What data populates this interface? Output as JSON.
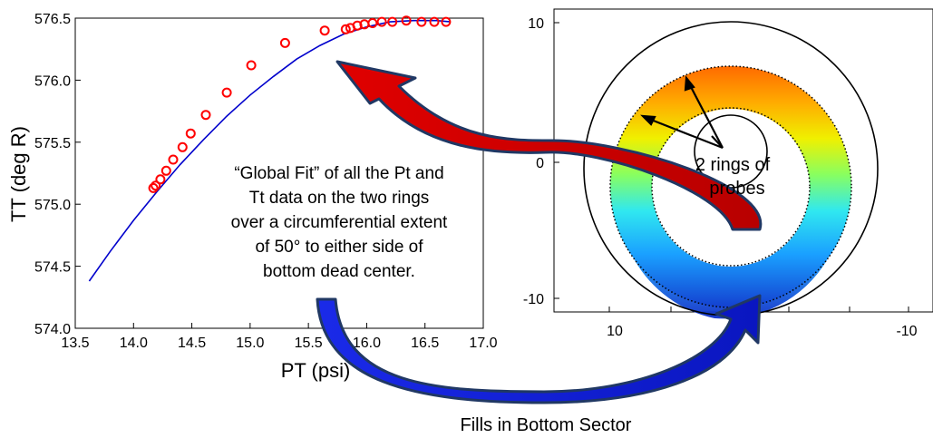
{
  "chart_data": [
    {
      "type": "scatter",
      "title": "",
      "xlabel": "PT (psi)",
      "ylabel": "TT (deg R)",
      "xlim": [
        13.5,
        17.0
      ],
      "ylim": [
        574.0,
        576.5
      ],
      "x_ticks": [
        "13.5",
        "14.0",
        "14.5",
        "15.0",
        "15.5",
        "16.0",
        "16.5",
        "17.0"
      ],
      "y_ticks": [
        "574.0",
        "574.5",
        "575.0",
        "575.5",
        "576.0",
        "576.5"
      ],
      "grid": false,
      "series": [
        {
          "marker": "open-circle",
          "color": "#ff0000",
          "x": [
            14.17,
            14.19,
            14.23,
            14.28,
            14.34,
            14.42,
            14.49,
            14.62,
            14.8,
            15.01,
            15.3,
            15.64,
            15.82,
            15.86,
            15.92,
            15.98,
            16.05,
            16.13,
            16.22,
            16.34,
            16.47,
            16.58,
            16.68
          ],
          "y": [
            575.13,
            575.15,
            575.2,
            575.27,
            575.36,
            575.46,
            575.57,
            575.72,
            575.9,
            576.12,
            576.3,
            576.4,
            576.41,
            576.42,
            576.44,
            576.45,
            576.46,
            576.47,
            576.47,
            576.48,
            576.47,
            576.47,
            576.47
          ]
        },
        {
          "style": "fit-line",
          "color": "#0000cc",
          "x": [
            13.62,
            13.8,
            14.0,
            14.2,
            14.4,
            14.6,
            14.8,
            15.0,
            15.2,
            15.4,
            15.6,
            15.8,
            16.0,
            16.2,
            16.4,
            16.6,
            16.72
          ],
          "y": [
            574.38,
            574.62,
            574.87,
            575.1,
            575.32,
            575.52,
            575.71,
            575.88,
            576.03,
            576.17,
            576.28,
            576.37,
            576.43,
            576.47,
            576.48,
            576.48,
            576.47
          ]
        }
      ]
    },
    {
      "type": "heatmap",
      "title": "",
      "x_ticks": [
        "10",
        "-10"
      ],
      "y_ticks": [
        "10",
        "0",
        "-10"
      ],
      "xlim": [
        15,
        -15
      ],
      "ylim": [
        -11,
        11
      ],
      "colormap": "jet",
      "annotations": [
        "2 rings of probes"
      ]
    }
  ],
  "annotations": {
    "global_fit": [
      "“Global Fit” of all the Pt and",
      "Tt data on the two rings",
      "over a circumferential extent",
      "of 50° to either side of",
      "bottom dead center."
    ],
    "rings_label": [
      "2 rings of",
      "probes"
    ],
    "bottom_label": "Fills in Bottom Sector"
  },
  "colors": {
    "red_arrow": "#dd0000",
    "blue_arrow": "#1a23e6",
    "arrow_outline": "#203864",
    "data_marker": "#ff0000",
    "fit_line": "#0000cc"
  }
}
